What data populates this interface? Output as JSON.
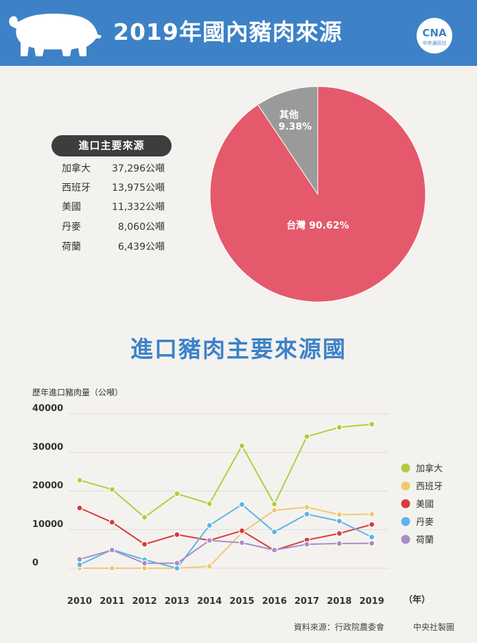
{
  "header": {
    "title": "2019年國內豬肉來源",
    "logo_text": "CNA",
    "logo_sub": "中央通訊社"
  },
  "sources_panel": {
    "title": "進口主要來源",
    "rows": [
      {
        "country": "加拿大",
        "value": "37,296公噸"
      },
      {
        "country": "西班牙",
        "value": "13,975公噸"
      },
      {
        "country": "美國",
        "value": "11,332公噸"
      },
      {
        "country": "丹麥",
        "value": "8,060公噸"
      },
      {
        "country": "荷蘭",
        "value": "6,439公噸"
      }
    ]
  },
  "section_title": "進口豬肉主要來源國",
  "footer": {
    "source": "資料來源：行政院農委會",
    "credit": "中央社製圖"
  },
  "colors": {
    "header_blue": "#3d82c7",
    "taiwan": "#e45a6c",
    "other": "#9a9a9a",
    "canada": "#b5cc3a",
    "spain": "#f0c96e",
    "usa": "#d83a3e",
    "denmark": "#5bb5e6",
    "netherlands": "#a98dc6"
  },
  "chart_data": [
    {
      "type": "pie",
      "slices": [
        {
          "label": "台灣",
          "value": 90.62,
          "display": "台灣 90.62%",
          "color": "#e45a6c"
        },
        {
          "label": "其他",
          "value": 9.38,
          "display": "9.38%",
          "color": "#9a9a9a"
        }
      ]
    },
    {
      "type": "line",
      "title": "",
      "ylabel": "歷年進口豬肉量（公噸）",
      "xlabel": "（年）",
      "x": [
        "2010",
        "2011",
        "2012",
        "2013",
        "2014",
        "2015",
        "2016",
        "2017",
        "2018",
        "2019"
      ],
      "ylim": [
        0,
        40000
      ],
      "yticks": [
        0,
        10000,
        20000,
        30000,
        40000
      ],
      "grid": true,
      "legend": "right",
      "series": [
        {
          "name": "加拿大",
          "color": "#b5cc3a",
          "values": [
            22800,
            20400,
            13200,
            19300,
            16700,
            31700,
            16600,
            34100,
            36500,
            37296
          ]
        },
        {
          "name": "西班牙",
          "color": "#f0c96e",
          "values": [
            0,
            0,
            0,
            0,
            500,
            9200,
            15000,
            15800,
            13900,
            13975
          ]
        },
        {
          "name": "美國",
          "color": "#d83a3e",
          "values": [
            15600,
            11900,
            6200,
            8700,
            7200,
            9700,
            4600,
            7300,
            9000,
            11332
          ]
        },
        {
          "name": "丹麥",
          "color": "#5bb5e6",
          "values": [
            900,
            4800,
            2200,
            0,
            11100,
            16500,
            9400,
            14000,
            12200,
            8060
          ]
        },
        {
          "name": "荷蘭",
          "color": "#a98dc6",
          "values": [
            2300,
            4700,
            1300,
            1300,
            7200,
            6600,
            4700,
            6200,
            6400,
            6439
          ]
        }
      ]
    }
  ]
}
